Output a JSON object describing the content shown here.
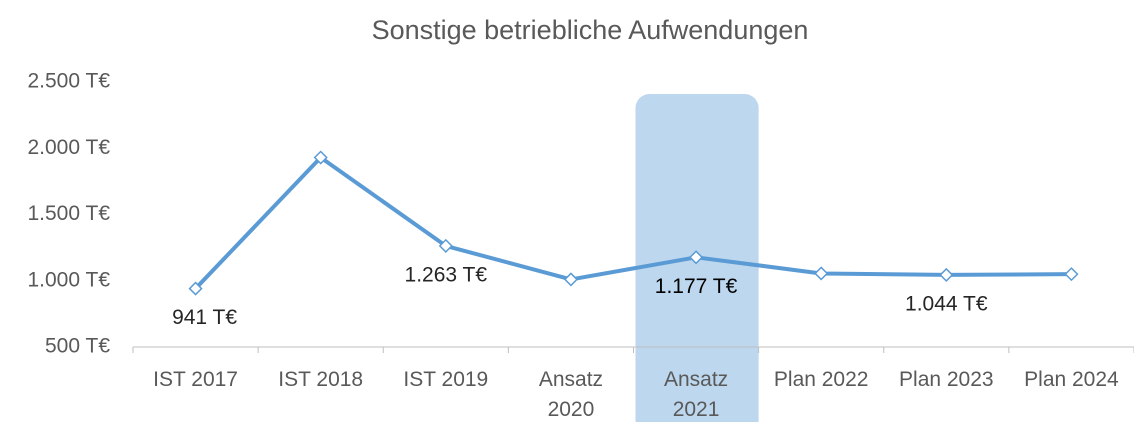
{
  "chart_data": {
    "type": "line",
    "title": "Sonstige betriebliche Aufwendungen",
    "categories": [
      "IST 2017",
      "IST 2018",
      "IST 2019",
      "Ansatz\n2020",
      "Ansatz\n2021",
      "Plan 2022",
      "Plan 2023",
      "Plan 2024"
    ],
    "series": [
      {
        "name": "Sonstige betriebliche Aufwendungen",
        "color": "#5b9bd5",
        "values": [
          941,
          1930,
          1263,
          1010,
          1177,
          1055,
          1044,
          1050
        ],
        "value_labels": [
          "941 T€",
          null,
          "1.263 T€",
          null,
          "1.177 T€",
          null,
          "1.044 T€",
          null
        ]
      }
    ],
    "ylim": [
      500,
      2500
    ],
    "yticks": [
      {
        "value": 500,
        "label": "500 T€"
      },
      {
        "value": 1000,
        "label": "1.000 T€"
      },
      {
        "value": 1500,
        "label": "1.500 T€"
      },
      {
        "value": 2000,
        "label": "2.000 T€"
      },
      {
        "value": 2500,
        "label": "2.500 T€"
      }
    ],
    "grid": false,
    "highlight_index": 4,
    "highlight_color": "#bdd7ee"
  }
}
